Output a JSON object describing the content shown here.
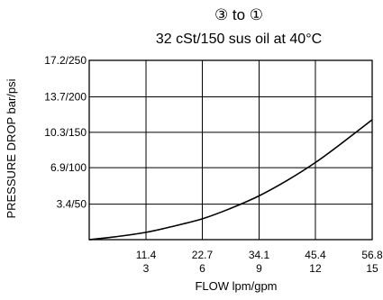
{
  "chart_data": {
    "type": "line",
    "title": "③ to ①",
    "subtitle": "32 cSt/150 sus oil at 40°C",
    "xlabel": "FLOW lpm/gpm",
    "ylabel": "PRESSURE DROP bar/psi",
    "x_ticks": [
      {
        "lpm": "11.4",
        "gpm": "3",
        "value": 11.4
      },
      {
        "lpm": "22.7",
        "gpm": "6",
        "value": 22.7
      },
      {
        "lpm": "34.1",
        "gpm": "9",
        "value": 34.1
      },
      {
        "lpm": "45.4",
        "gpm": "12",
        "value": 45.4
      },
      {
        "lpm": "56.8",
        "gpm": "15",
        "value": 56.8
      }
    ],
    "y_ticks": [
      {
        "label": "3.4/50",
        "value": 3.4
      },
      {
        "label": "6.9/100",
        "value": 6.9
      },
      {
        "label": "10.3/150",
        "value": 10.3
      },
      {
        "label": "13.7/200",
        "value": 13.7
      },
      {
        "label": "17.2/250",
        "value": 17.2
      }
    ],
    "xlim": [
      0,
      56.8
    ],
    "ylim": [
      0,
      17.2
    ],
    "grid": true,
    "series": [
      {
        "x": [
          0,
          5.7,
          11.4,
          17,
          22.7,
          28.4,
          34.1,
          39.8,
          45.4,
          51.1,
          56.8
        ],
        "y": [
          0,
          0.3,
          0.7,
          1.3,
          2.0,
          3.0,
          4.2,
          5.7,
          7.4,
          9.4,
          11.5
        ]
      }
    ],
    "colors": {
      "line": "#000000",
      "grid": "#000000",
      "background": "#ffffff"
    }
  }
}
